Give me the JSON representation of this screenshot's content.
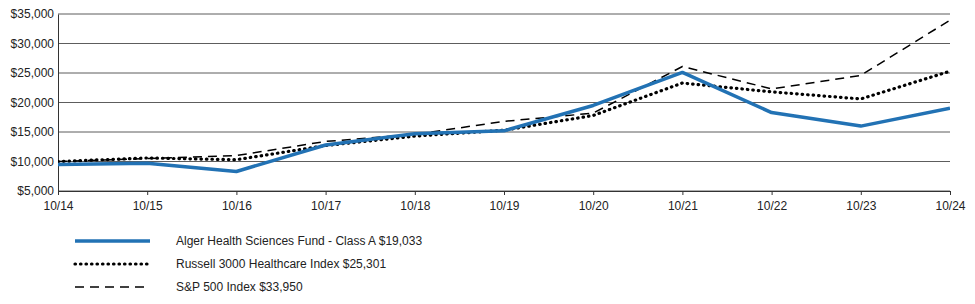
{
  "chart_data": {
    "type": "line",
    "categories": [
      "10/14",
      "10/15",
      "10/16",
      "10/17",
      "10/18",
      "10/19",
      "10/20",
      "10/21",
      "10/22",
      "10/23",
      "10/24"
    ],
    "series": [
      {
        "name": "Alger Health Sciences Fund - Class A $19,033",
        "color": "#2272b4",
        "line_style": "solid",
        "values": [
          9500,
          9700,
          8300,
          12800,
          14700,
          15200,
          19500,
          25100,
          18300,
          16000,
          19033
        ]
      },
      {
        "name": "Russell 3000 Healthcare Index $25,301",
        "color": "#000000",
        "line_style": "dotted",
        "values": [
          10000,
          10600,
          10300,
          12700,
          14300,
          15300,
          17800,
          23300,
          21800,
          20600,
          25301
        ]
      },
      {
        "name": "S&P 500 Index $33,950",
        "color": "#000000",
        "line_style": "dashed",
        "values": [
          10000,
          10500,
          11000,
          13400,
          14600,
          16800,
          18200,
          26100,
          22300,
          24600,
          33950
        ]
      }
    ],
    "ylim": [
      5000,
      35000
    ],
    "yticks": [
      {
        "value": 5000,
        "label": "$5,000"
      },
      {
        "value": 10000,
        "label": "$10,000"
      },
      {
        "value": 15000,
        "label": "$15,000"
      },
      {
        "value": 20000,
        "label": "$20,000"
      },
      {
        "value": 25000,
        "label": "$25,000"
      },
      {
        "value": 30000,
        "label": "$30,000"
      },
      {
        "value": 35000,
        "label": "$35,000"
      }
    ],
    "grid": true,
    "legend": "bottom"
  }
}
